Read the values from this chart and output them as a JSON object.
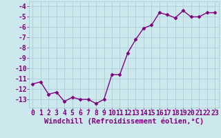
{
  "x": [
    0,
    1,
    2,
    3,
    4,
    5,
    6,
    7,
    8,
    9,
    10,
    11,
    12,
    13,
    14,
    15,
    16,
    17,
    18,
    19,
    20,
    21,
    22,
    23
  ],
  "y": [
    -11.5,
    -11.3,
    -12.5,
    -12.3,
    -13.2,
    -12.8,
    -13.0,
    -13.0,
    -13.4,
    -13.0,
    -10.6,
    -10.6,
    -8.5,
    -7.2,
    -6.1,
    -5.8,
    -4.6,
    -4.8,
    -5.1,
    -4.4,
    -5.0,
    -5.0,
    -4.6,
    -4.6
  ],
  "line_color": "#800080",
  "marker": "D",
  "marker_size": 2.5,
  "line_width": 1.0,
  "bg_color": "#cce8ec",
  "grid_color": "#aad0d8",
  "xlabel": "Windchill (Refroidissement éolien,°C)",
  "xlim": [
    -0.5,
    23.5
  ],
  "ylim": [
    -13.8,
    -3.5
  ],
  "yticks": [
    -13,
    -12,
    -11,
    -10,
    -9,
    -8,
    -7,
    -6,
    -5,
    -4
  ],
  "xticks": [
    0,
    1,
    2,
    3,
    4,
    5,
    6,
    7,
    8,
    9,
    10,
    11,
    12,
    13,
    14,
    15,
    16,
    17,
    18,
    19,
    20,
    21,
    22,
    23
  ],
  "xlabel_fontsize": 7.5,
  "tick_fontsize": 7,
  "label_color": "#800080"
}
